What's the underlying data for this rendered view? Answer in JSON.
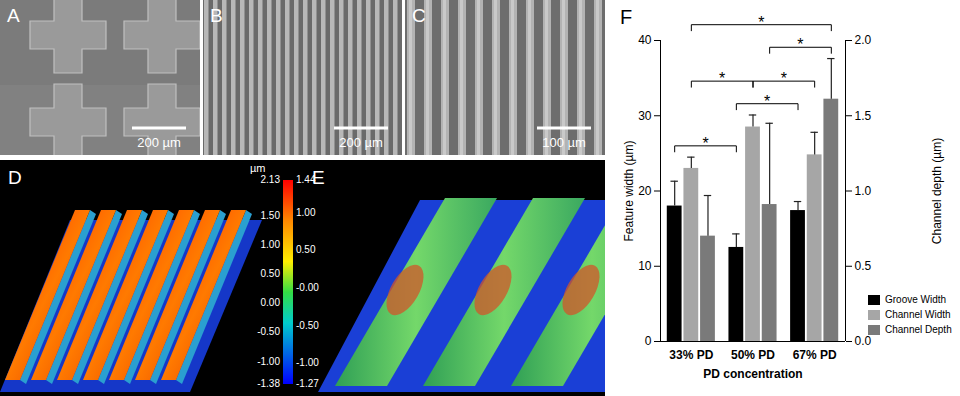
{
  "panels": [
    {
      "label": "A",
      "scale_bar": "200 µm"
    },
    {
      "label": "B",
      "scale_bar": "200 µm"
    },
    {
      "label": "C",
      "scale_bar": "100 µm"
    },
    {
      "label": "D"
    },
    {
      "label": "E"
    }
  ],
  "colorbar": {
    "unit": "µm",
    "left_ticks": [
      2.13,
      {
        "value": 1.5,
        "label": "1.50"
      },
      {
        "value": 1,
        "label": "1.00"
      },
      {
        "value": 0.5,
        "label": "0.50"
      },
      {
        "value": 0,
        "label": "0.00"
      },
      {
        "value": -0.5,
        "label": "-0.50"
      },
      {
        "value": -1,
        "label": "-1.00"
      },
      -1.38
    ],
    "right_ticks": [
      1.44,
      {
        "value": 1,
        "label": "1.00"
      },
      {
        "value": 0.5,
        "label": "0.50"
      },
      {
        "value": 0,
        "label": "-0.00"
      },
      {
        "value": -0.5,
        "label": "-0.50"
      },
      {
        "value": -1,
        "label": "-1.00"
      },
      -1.27
    ]
  },
  "chart_data": {
    "type": "bar",
    "title": "F",
    "categories": [
      "33% PD",
      "50% PD",
      "67% PD"
    ],
    "xlabel": "PD concentration",
    "ylabel": "Feature width (µm)",
    "y2label": "Channel depth (µm)",
    "ylim": [
      0,
      40
    ],
    "yticks": [
      0,
      10,
      20,
      30,
      40
    ],
    "y2lim": [
      0,
      2
    ],
    "y2ticks": [
      {
        "value": 0,
        "label": "0.0"
      },
      0.5,
      {
        "value": 1,
        "label": "1.0"
      },
      1.5,
      {
        "value": 2,
        "label": "2.0"
      }
    ],
    "legend": "right",
    "series": [
      {
        "name": "Groove Width",
        "color": "#000000",
        "values": [
          18,
          12.5,
          17.4
        ],
        "errors": [
          3.3,
          1.8,
          1.2
        ]
      },
      {
        "name": "Channel Width",
        "color": "#a6a6a6",
        "values": [
          23,
          28.5,
          24.8
        ],
        "errors": [
          1.5,
          1.6,
          3.0
        ]
      },
      {
        "name": "Channel Depth",
        "color": "#7a7a7a",
        "axis": "y2",
        "values": [
          0.7,
          0.91,
          1.61
        ],
        "errors": [
          0.27,
          0.54,
          0.27
        ]
      }
    ],
    "significance": [
      {
        "from": [
          "33% PD",
          "Groove Width"
        ],
        "to": [
          "50% PD",
          "Groove Width"
        ],
        "label": "*"
      },
      {
        "from": [
          "50% PD",
          "Groove Width"
        ],
        "to": [
          "67% PD",
          "Groove Width"
        ],
        "label": "*"
      },
      {
        "from": [
          "33% PD",
          "Channel Width"
        ],
        "to": [
          "50% PD",
          "Channel Width"
        ],
        "label": "*"
      },
      {
        "from": [
          "50% PD",
          "Channel Width"
        ],
        "to": [
          "67% PD",
          "Channel Width"
        ],
        "label": "*"
      },
      {
        "from": [
          "50% PD",
          "Channel Depth"
        ],
        "to": [
          "67% PD",
          "Channel Depth"
        ],
        "label": "*"
      },
      {
        "from": [
          "33% PD",
          "Channel Width"
        ],
        "to": [
          "67% PD",
          "Channel Depth"
        ],
        "label": "*"
      }
    ]
  }
}
